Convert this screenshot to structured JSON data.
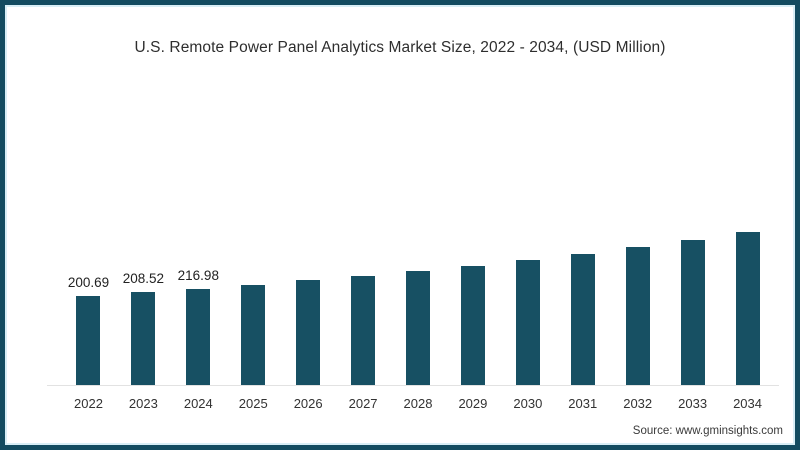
{
  "frame": {
    "border_color": "#134b60",
    "inner_border_color": "#d8eef6",
    "background": "#ffffff"
  },
  "footer": {
    "source": "Source: www.gminsights.com"
  },
  "chart_data": {
    "type": "bar",
    "title": "U.S. Remote Power Panel Analytics Market Size, 2022 - 2034, (USD Million)",
    "unit": "USD Million",
    "categories": [
      "2022",
      "2023",
      "2024",
      "2025",
      "2026",
      "2027",
      "2028",
      "2029",
      "2030",
      "2031",
      "2032",
      "2033",
      "2034"
    ],
    "values": [
      200.69,
      208.52,
      216.98,
      226,
      235.5,
      245.5,
      256.5,
      268.5,
      281.5,
      295.5,
      310.5,
      327,
      344.5
    ],
    "data_labels": [
      "200.69",
      "208.52",
      "216.98",
      "",
      "",
      "",
      "",
      "",
      "",
      "",
      "",
      "",
      ""
    ],
    "bar_color": "#175063",
    "axis_line_color": "#e2e2e2",
    "value_label_color": "#222222",
    "tick_label_color": "#333333",
    "grid": false,
    "legend": false,
    "ylim": [
      0,
      360
    ]
  }
}
